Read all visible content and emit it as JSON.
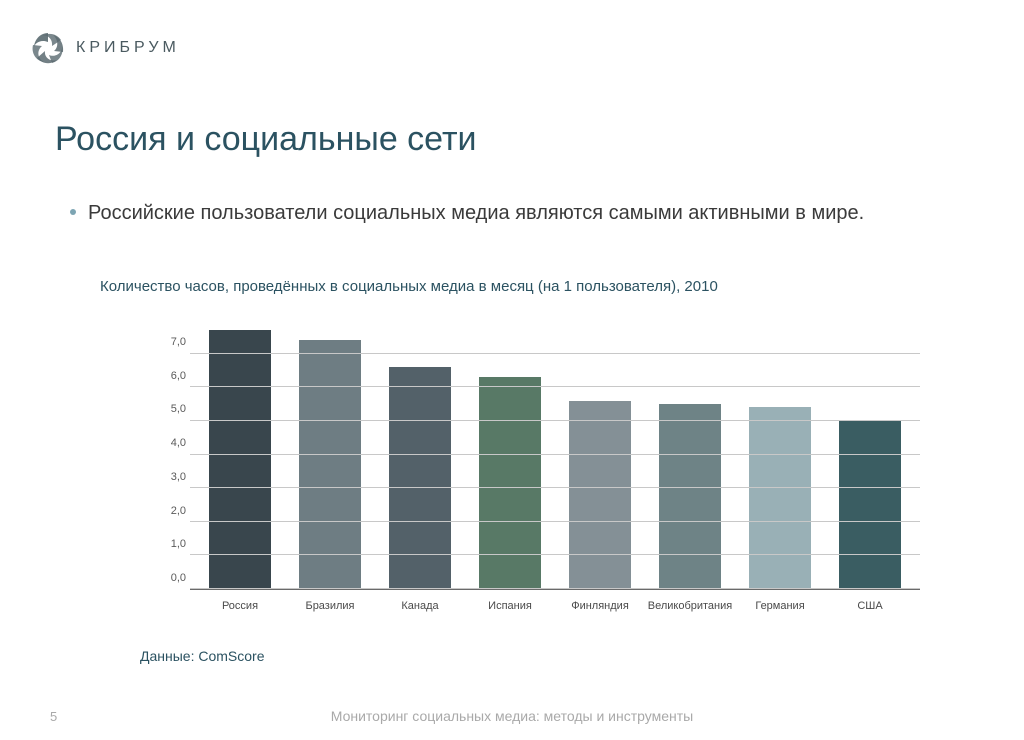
{
  "brand": "КРИБРУМ",
  "title": "Россия и социальные сети",
  "bullet_text": "Российские пользователи социальных медиа являются самыми активными в мире.",
  "chart": {
    "type": "bar",
    "title": "Количество часов, проведённых в социальных медиа в месяц (на 1 пользователя), 2010",
    "categories": [
      "Россия",
      "Бразилия",
      "Канада",
      "Испания",
      "Финляндия",
      "Великобритания",
      "Германия",
      "США"
    ],
    "values": [
      7.7,
      7.4,
      6.6,
      6.3,
      5.6,
      5.5,
      5.4,
      5.0
    ],
    "bar_colors": [
      "#39464d",
      "#6e7d83",
      "#536169",
      "#587966",
      "#849096",
      "#6e8386",
      "#99b0b6",
      "#3a5d62"
    ],
    "y_ticks": [
      "0,0",
      "1,0",
      "2,0",
      "3,0",
      "4,0",
      "5,0",
      "6,0",
      "7,0"
    ],
    "y_max": 8.0,
    "y_tick_values": [
      0,
      1,
      2,
      3,
      4,
      5,
      6,
      7
    ],
    "grid_color": "#c8c8c8",
    "axis_color": "#6a6a6a",
    "tick_font_size": 11,
    "tick_color": "#5a5a5a",
    "xlabel_color": "#4a4a4a",
    "background_color": "#ffffff"
  },
  "source": "Данные: ComScore",
  "page_number": "5",
  "footer": "Мониторинг социальных медиа: методы и инструменты"
}
